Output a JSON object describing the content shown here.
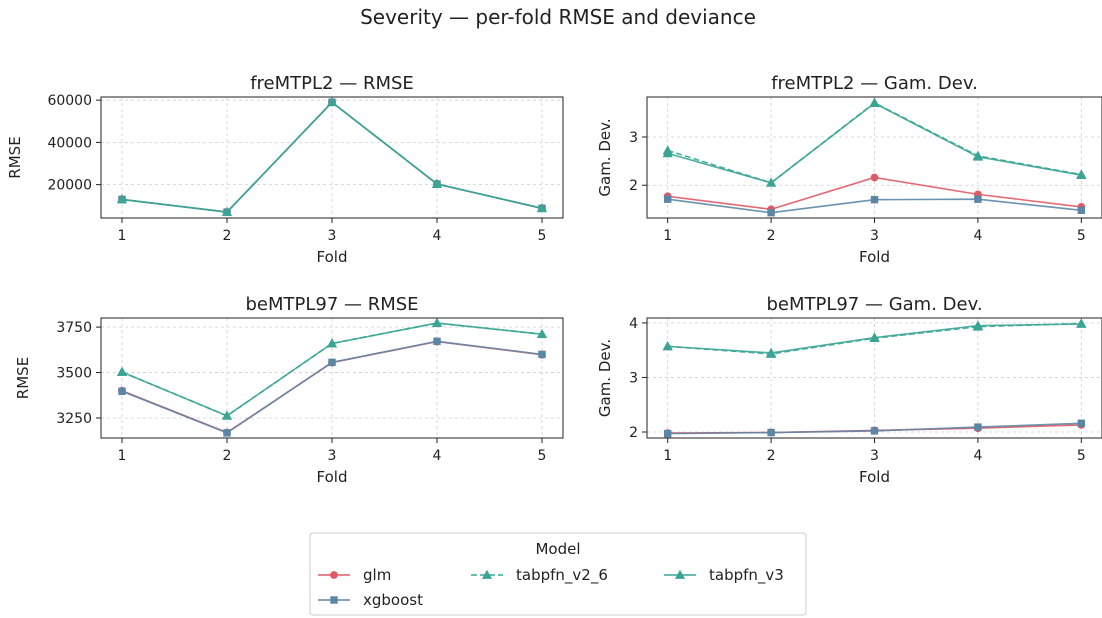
{
  "figure_title": "Severity — per-fold RMSE and deviance",
  "legend": {
    "title": "Model",
    "items": [
      {
        "key": "glm",
        "label": "glm"
      },
      {
        "key": "xgboost",
        "label": "xgboost"
      },
      {
        "key": "tabpfn_v2_6",
        "label": "tabpfn_v2_6"
      },
      {
        "key": "tabpfn_v3",
        "label": "tabpfn_v3"
      }
    ]
  },
  "styles": {
    "glm": {
      "color": "#e05a66",
      "marker": "circle",
      "dash": "solid"
    },
    "xgboost": {
      "color": "#5b86a5",
      "marker": "square",
      "dash": "solid"
    },
    "tabpfn_v2_6": {
      "color": "#3aa595",
      "marker": "triangle",
      "dash": "dashed"
    },
    "tabpfn_v3": {
      "color": "#3aa595",
      "marker": "triangle",
      "dash": "solid"
    }
  },
  "chart_data": [
    {
      "type": "line",
      "title": "freMTPL2 — RMSE",
      "xlabel": "Fold",
      "ylabel": "RMSE",
      "x": [
        1,
        2,
        3,
        4,
        5
      ],
      "xlim": [
        0.8,
        5.2
      ],
      "ylim": [
        4200,
        61500
      ],
      "yticks": [
        20000,
        40000,
        60000
      ],
      "grid": true,
      "series": [
        {
          "name": "glm",
          "values": [
            13000,
            7000,
            59000,
            20300,
            8800
          ]
        },
        {
          "name": "xgboost",
          "values": [
            13000,
            7000,
            59000,
            20300,
            8800
          ]
        },
        {
          "name": "tabpfn_v2_6",
          "values": [
            13000,
            7000,
            59000,
            20300,
            8800
          ]
        },
        {
          "name": "tabpfn_v3",
          "values": [
            13000,
            7000,
            59000,
            20300,
            8800
          ]
        }
      ]
    },
    {
      "type": "line",
      "title": "freMTPL2 — Gam. Dev.",
      "xlabel": "Fold",
      "ylabel": "Gam. Dev.",
      "x": [
        1,
        2,
        3,
        4,
        5
      ],
      "xlim": [
        0.8,
        5.2
      ],
      "ylim": [
        1.32,
        3.83
      ],
      "yticks": [
        2,
        3
      ],
      "grid": true,
      "series": [
        {
          "name": "glm",
          "values": [
            1.77,
            1.5,
            2.16,
            1.81,
            1.55
          ]
        },
        {
          "name": "xgboost",
          "values": [
            1.71,
            1.43,
            1.7,
            1.71,
            1.48
          ]
        },
        {
          "name": "tabpfn_v2_6",
          "values": [
            2.72,
            2.05,
            3.71,
            2.61,
            2.22
          ]
        },
        {
          "name": "tabpfn_v3",
          "values": [
            2.66,
            2.05,
            3.7,
            2.59,
            2.21
          ]
        }
      ]
    },
    {
      "type": "line",
      "title": "beMTPL97 — RMSE",
      "xlabel": "Fold",
      "ylabel": "RMSE",
      "x": [
        1,
        2,
        3,
        4,
        5
      ],
      "xlim": [
        0.8,
        5.2
      ],
      "ylim": [
        3140,
        3800
      ],
      "yticks": [
        3250,
        3500,
        3750
      ],
      "grid": true,
      "series": [
        {
          "name": "glm",
          "values": [
            3400,
            3170,
            3555,
            3670,
            3598
          ]
        },
        {
          "name": "xgboost",
          "values": [
            3397,
            3168,
            3556,
            3672,
            3600
          ]
        },
        {
          "name": "tabpfn_v2_6",
          "values": [
            3503,
            3262,
            3660,
            3772,
            3711
          ]
        },
        {
          "name": "tabpfn_v3",
          "values": [
            3503,
            3262,
            3660,
            3772,
            3711
          ]
        }
      ]
    },
    {
      "type": "line",
      "title": "beMTPL97 — Gam. Dev.",
      "xlabel": "Fold",
      "ylabel": "Gam. Dev.",
      "x": [
        1,
        2,
        3,
        4,
        5
      ],
      "xlim": [
        0.8,
        5.2
      ],
      "ylim": [
        1.89,
        4.09
      ],
      "yticks": [
        2,
        3,
        4
      ],
      "grid": true,
      "series": [
        {
          "name": "glm",
          "values": [
            1.98,
            1.99,
            2.03,
            2.07,
            2.13
          ]
        },
        {
          "name": "xgboost",
          "values": [
            1.97,
            1.99,
            2.02,
            2.09,
            2.16
          ]
        },
        {
          "name": "tabpfn_v2_6",
          "values": [
            3.57,
            3.43,
            3.72,
            3.93,
            3.99
          ]
        },
        {
          "name": "tabpfn_v3",
          "values": [
            3.57,
            3.45,
            3.73,
            3.95,
            3.98
          ]
        }
      ]
    }
  ]
}
